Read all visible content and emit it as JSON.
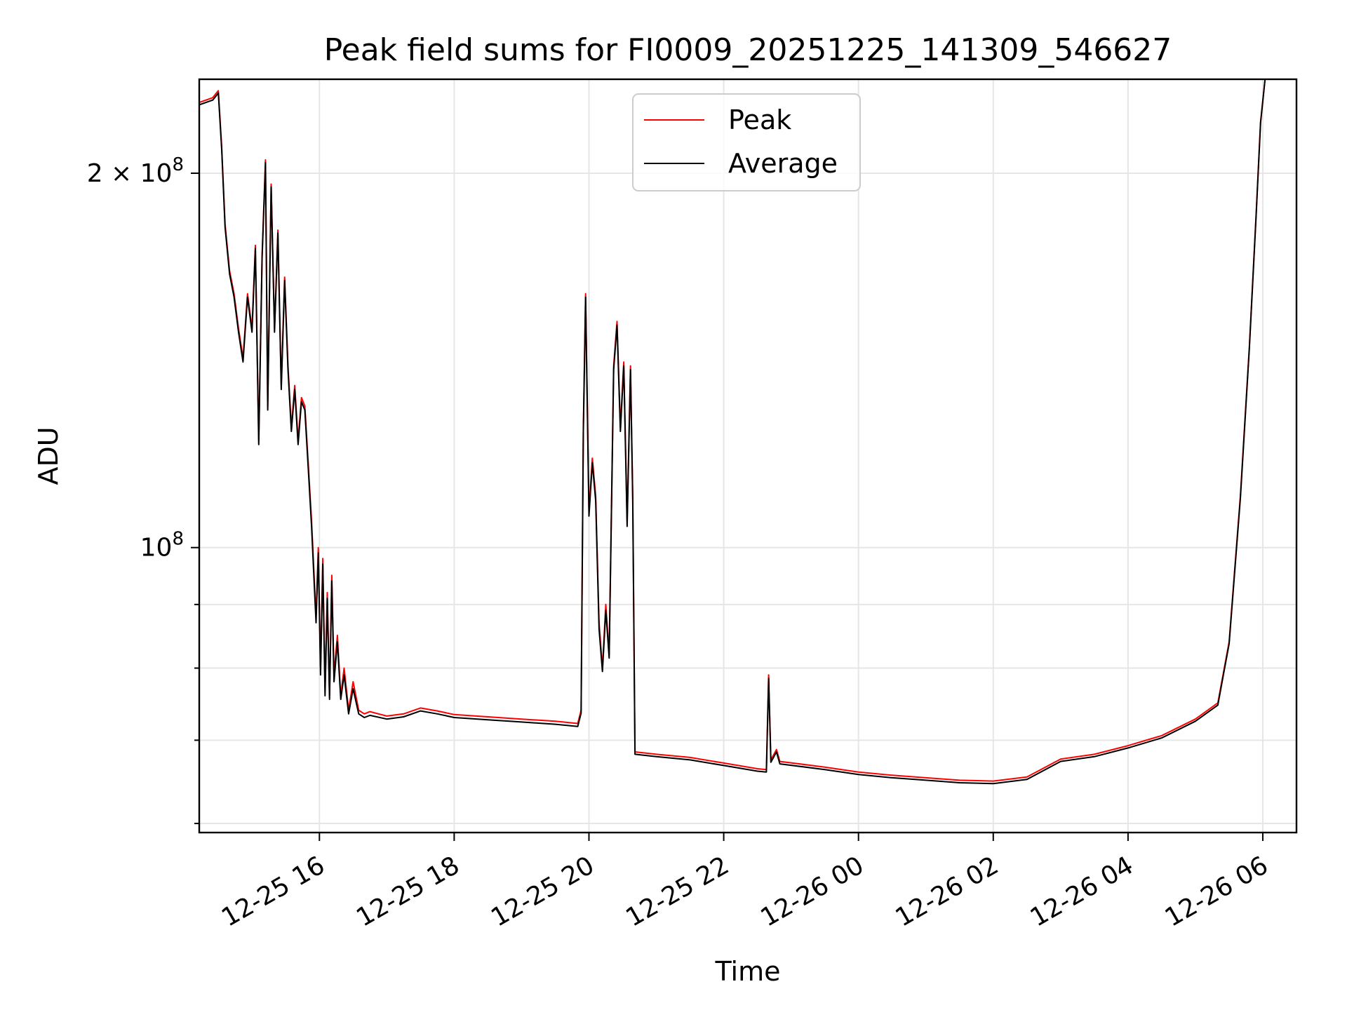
{
  "chart_data": {
    "type": "line",
    "title": "Peak field sums for FI0009_20251225_141309_546627",
    "xlabel": "Time",
    "ylabel": "ADU",
    "yscale": "log",
    "ylim": [
      59000000,
      238000000
    ],
    "xlim": [
      "2025-12-25 14:13",
      "2025-12-26 06:30"
    ],
    "grid": true,
    "legend_position": "upper-center",
    "x_ticks": [
      {
        "t": "2025-12-25 16:00",
        "label": "12-25 16"
      },
      {
        "t": "2025-12-25 18:00",
        "label": "12-25 18"
      },
      {
        "t": "2025-12-25 20:00",
        "label": "12-25 20"
      },
      {
        "t": "2025-12-25 22:00",
        "label": "12-25 22"
      },
      {
        "t": "2025-12-26 00:00",
        "label": "12-26 00"
      },
      {
        "t": "2025-12-26 02:00",
        "label": "12-26 02"
      },
      {
        "t": "2025-12-26 04:00",
        "label": "12-26 04"
      },
      {
        "t": "2025-12-26 06:00",
        "label": "12-26 06"
      }
    ],
    "y_major_ticks": [
      {
        "value": 100000000,
        "base": "10",
        "exp": "8",
        "prefix": ""
      },
      {
        "value": 200000000,
        "base": "10",
        "exp": "8",
        "prefix": "2 × "
      }
    ],
    "y_minor_ticks": [
      60000000,
      70000000,
      80000000,
      90000000
    ],
    "series": [
      {
        "name": "Peak",
        "color": "#ff0000",
        "points": [
          [
            "2025-12-25 14:13",
            228000000
          ],
          [
            "2025-12-25 14:25",
            230000000
          ],
          [
            "2025-12-25 14:30",
            233000000
          ],
          [
            "2025-12-25 14:33",
            210000000
          ],
          [
            "2025-12-25 14:36",
            182000000
          ],
          [
            "2025-12-25 14:40",
            167000000
          ],
          [
            "2025-12-25 14:44",
            160000000
          ],
          [
            "2025-12-25 14:48",
            150000000
          ],
          [
            "2025-12-25 14:52",
            142000000
          ],
          [
            "2025-12-25 14:56",
            160000000
          ],
          [
            "2025-12-25 15:00",
            150000000
          ],
          [
            "2025-12-25 15:03",
            175000000
          ],
          [
            "2025-12-25 15:06",
            122000000
          ],
          [
            "2025-12-25 15:09",
            172000000
          ],
          [
            "2025-12-25 15:12",
            205000000
          ],
          [
            "2025-12-25 15:14",
            130000000
          ],
          [
            "2025-12-25 15:17",
            196000000
          ],
          [
            "2025-12-25 15:20",
            150000000
          ],
          [
            "2025-12-25 15:23",
            180000000
          ],
          [
            "2025-12-25 15:26",
            135000000
          ],
          [
            "2025-12-25 15:29",
            165000000
          ],
          [
            "2025-12-25 15:32",
            140000000
          ],
          [
            "2025-12-25 15:35",
            125000000
          ],
          [
            "2025-12-25 15:38",
            135000000
          ],
          [
            "2025-12-25 15:41",
            122000000
          ],
          [
            "2025-12-25 15:44",
            132000000
          ],
          [
            "2025-12-25 15:47",
            130000000
          ],
          [
            "2025-12-25 15:50",
            117000000
          ],
          [
            "2025-12-25 15:53",
            105000000
          ],
          [
            "2025-12-25 15:55",
            96000000
          ],
          [
            "2025-12-25 15:57",
            88000000
          ],
          [
            "2025-12-25 15:59",
            100000000
          ],
          [
            "2025-12-25 16:01",
            80000000
          ],
          [
            "2025-12-25 16:03",
            98000000
          ],
          [
            "2025-12-25 16:05",
            77000000
          ],
          [
            "2025-12-25 16:07",
            92000000
          ],
          [
            "2025-12-25 16:09",
            76000000
          ],
          [
            "2025-12-25 16:11",
            95000000
          ],
          [
            "2025-12-25 16:13",
            79000000
          ],
          [
            "2025-12-25 16:16",
            85000000
          ],
          [
            "2025-12-25 16:19",
            76000000
          ],
          [
            "2025-12-25 16:22",
            80000000
          ],
          [
            "2025-12-25 16:26",
            74000000
          ],
          [
            "2025-12-25 16:30",
            78000000
          ],
          [
            "2025-12-25 16:35",
            74000000
          ],
          [
            "2025-12-25 16:40",
            73500000
          ],
          [
            "2025-12-25 16:45",
            73800000
          ],
          [
            "2025-12-25 17:00",
            73200000
          ],
          [
            "2025-12-25 17:15",
            73500000
          ],
          [
            "2025-12-25 17:30",
            74300000
          ],
          [
            "2025-12-25 17:45",
            73900000
          ],
          [
            "2025-12-25 18:00",
            73400000
          ],
          [
            "2025-12-25 18:30",
            73100000
          ],
          [
            "2025-12-25 19:00",
            72800000
          ],
          [
            "2025-12-25 19:30",
            72500000
          ],
          [
            "2025-12-25 19:50",
            72200000
          ],
          [
            "2025-12-25 19:53",
            74000000
          ],
          [
            "2025-12-25 19:55",
            125000000
          ],
          [
            "2025-12-25 19:57",
            160000000
          ],
          [
            "2025-12-25 20:00",
            107000000
          ],
          [
            "2025-12-25 20:03",
            118000000
          ],
          [
            "2025-12-25 20:06",
            110000000
          ],
          [
            "2025-12-25 20:09",
            87000000
          ],
          [
            "2025-12-25 20:12",
            80000000
          ],
          [
            "2025-12-25 20:15",
            90000000
          ],
          [
            "2025-12-25 20:18",
            82000000
          ],
          [
            "2025-12-25 20:22",
            140000000
          ],
          [
            "2025-12-25 20:25",
            152000000
          ],
          [
            "2025-12-25 20:28",
            125000000
          ],
          [
            "2025-12-25 20:31",
            141000000
          ],
          [
            "2025-12-25 20:34",
            105000000
          ],
          [
            "2025-12-25 20:37",
            140000000
          ],
          [
            "2025-12-25 20:39",
            110000000
          ],
          [
            "2025-12-25 20:41",
            68500000
          ],
          [
            "2025-12-25 21:00",
            68200000
          ],
          [
            "2025-12-25 21:30",
            67800000
          ],
          [
            "2025-12-25 22:00",
            67100000
          ],
          [
            "2025-12-25 22:30",
            66400000
          ],
          [
            "2025-12-25 22:38",
            66300000
          ],
          [
            "2025-12-25 22:40",
            79000000
          ],
          [
            "2025-12-25 22:42",
            67500000
          ],
          [
            "2025-12-25 22:47",
            68800000
          ],
          [
            "2025-12-25 22:50",
            67300000
          ],
          [
            "2025-12-25 23:30",
            66600000
          ],
          [
            "2025-12-26 00:00",
            66000000
          ],
          [
            "2025-12-26 00:30",
            65600000
          ],
          [
            "2025-12-26 01:00",
            65300000
          ],
          [
            "2025-12-26 01:30",
            65000000
          ],
          [
            "2025-12-26 02:00",
            64900000
          ],
          [
            "2025-12-26 02:30",
            65400000
          ],
          [
            "2025-12-26 03:00",
            67600000
          ],
          [
            "2025-12-26 03:30",
            68200000
          ],
          [
            "2025-12-26 04:00",
            69300000
          ],
          [
            "2025-12-26 04:30",
            70600000
          ],
          [
            "2025-12-26 05:00",
            72800000
          ],
          [
            "2025-12-26 05:20",
            75000000
          ],
          [
            "2025-12-26 05:30",
            84000000
          ],
          [
            "2025-12-26 05:40",
            110000000
          ],
          [
            "2025-12-26 05:48",
            145000000
          ],
          [
            "2025-12-26 05:54",
            185000000
          ],
          [
            "2025-12-26 05:58",
            220000000
          ],
          [
            "2025-12-26 06:02",
            238000000
          ]
        ]
      },
      {
        "name": "Average",
        "color": "#000000",
        "points": [
          [
            "2025-12-25 14:13",
            227000000
          ],
          [
            "2025-12-25 14:25",
            229000000
          ],
          [
            "2025-12-25 14:30",
            232000000
          ],
          [
            "2025-12-25 14:33",
            209000000
          ],
          [
            "2025-12-25 14:36",
            181000000
          ],
          [
            "2025-12-25 14:40",
            166000000
          ],
          [
            "2025-12-25 14:44",
            159000000
          ],
          [
            "2025-12-25 14:48",
            149000000
          ],
          [
            "2025-12-25 14:52",
            141000000
          ],
          [
            "2025-12-25 14:56",
            159000000
          ],
          [
            "2025-12-25 15:00",
            149000000
          ],
          [
            "2025-12-25 15:03",
            174000000
          ],
          [
            "2025-12-25 15:06",
            121000000
          ],
          [
            "2025-12-25 15:09",
            171000000
          ],
          [
            "2025-12-25 15:12",
            204000000
          ],
          [
            "2025-12-25 15:14",
            129000000
          ],
          [
            "2025-12-25 15:17",
            195000000
          ],
          [
            "2025-12-25 15:20",
            149000000
          ],
          [
            "2025-12-25 15:23",
            179000000
          ],
          [
            "2025-12-25 15:26",
            134000000
          ],
          [
            "2025-12-25 15:29",
            164000000
          ],
          [
            "2025-12-25 15:32",
            139000000
          ],
          [
            "2025-12-25 15:35",
            124000000
          ],
          [
            "2025-12-25 15:38",
            134000000
          ],
          [
            "2025-12-25 15:41",
            121000000
          ],
          [
            "2025-12-25 15:44",
            131000000
          ],
          [
            "2025-12-25 15:47",
            129000000
          ],
          [
            "2025-12-25 15:50",
            116000000
          ],
          [
            "2025-12-25 15:53",
            104000000
          ],
          [
            "2025-12-25 15:55",
            95000000
          ],
          [
            "2025-12-25 15:57",
            87000000
          ],
          [
            "2025-12-25 15:59",
            99000000
          ],
          [
            "2025-12-25 16:01",
            79000000
          ],
          [
            "2025-12-25 16:03",
            97000000
          ],
          [
            "2025-12-25 16:05",
            76000000
          ],
          [
            "2025-12-25 16:07",
            91000000
          ],
          [
            "2025-12-25 16:09",
            75500000
          ],
          [
            "2025-12-25 16:11",
            94000000
          ],
          [
            "2025-12-25 16:13",
            78000000
          ],
          [
            "2025-12-25 16:16",
            84000000
          ],
          [
            "2025-12-25 16:19",
            75500000
          ],
          [
            "2025-12-25 16:22",
            79000000
          ],
          [
            "2025-12-25 16:26",
            73500000
          ],
          [
            "2025-12-25 16:30",
            77000000
          ],
          [
            "2025-12-25 16:35",
            73500000
          ],
          [
            "2025-12-25 16:40",
            73000000
          ],
          [
            "2025-12-25 16:45",
            73300000
          ],
          [
            "2025-12-25 17:00",
            72800000
          ],
          [
            "2025-12-25 17:15",
            73100000
          ],
          [
            "2025-12-25 17:30",
            73900000
          ],
          [
            "2025-12-25 17:45",
            73500000
          ],
          [
            "2025-12-25 18:00",
            73000000
          ],
          [
            "2025-12-25 18:30",
            72700000
          ],
          [
            "2025-12-25 19:00",
            72400000
          ],
          [
            "2025-12-25 19:30",
            72100000
          ],
          [
            "2025-12-25 19:50",
            71800000
          ],
          [
            "2025-12-25 19:53",
            73600000
          ],
          [
            "2025-12-25 19:55",
            124000000
          ],
          [
            "2025-12-25 19:57",
            159000000
          ],
          [
            "2025-12-25 20:00",
            106000000
          ],
          [
            "2025-12-25 20:03",
            117000000
          ],
          [
            "2025-12-25 20:06",
            109000000
          ],
          [
            "2025-12-25 20:09",
            86000000
          ],
          [
            "2025-12-25 20:12",
            79500000
          ],
          [
            "2025-12-25 20:15",
            89000000
          ],
          [
            "2025-12-25 20:18",
            81500000
          ],
          [
            "2025-12-25 20:22",
            139000000
          ],
          [
            "2025-12-25 20:25",
            151000000
          ],
          [
            "2025-12-25 20:28",
            124000000
          ],
          [
            "2025-12-25 20:31",
            140000000
          ],
          [
            "2025-12-25 20:34",
            104000000
          ],
          [
            "2025-12-25 20:37",
            139000000
          ],
          [
            "2025-12-25 20:39",
            109000000
          ],
          [
            "2025-12-25 20:41",
            68200000
          ],
          [
            "2025-12-25 21:00",
            67900000
          ],
          [
            "2025-12-25 21:30",
            67500000
          ],
          [
            "2025-12-25 22:00",
            66800000
          ],
          [
            "2025-12-25 22:30",
            66100000
          ],
          [
            "2025-12-25 22:38",
            66000000
          ],
          [
            "2025-12-25 22:40",
            78500000
          ],
          [
            "2025-12-25 22:42",
            67200000
          ],
          [
            "2025-12-25 22:47",
            68500000
          ],
          [
            "2025-12-25 22:50",
            67000000
          ],
          [
            "2025-12-25 23:30",
            66300000
          ],
          [
            "2025-12-26 00:00",
            65700000
          ],
          [
            "2025-12-26 00:30",
            65300000
          ],
          [
            "2025-12-26 01:00",
            65000000
          ],
          [
            "2025-12-26 01:30",
            64700000
          ],
          [
            "2025-12-26 02:00",
            64600000
          ],
          [
            "2025-12-26 02:30",
            65100000
          ],
          [
            "2025-12-26 03:00",
            67300000
          ],
          [
            "2025-12-26 03:30",
            67900000
          ],
          [
            "2025-12-26 04:00",
            69000000
          ],
          [
            "2025-12-26 04:30",
            70300000
          ],
          [
            "2025-12-26 05:00",
            72500000
          ],
          [
            "2025-12-26 05:20",
            74700000
          ],
          [
            "2025-12-26 05:30",
            83700000
          ],
          [
            "2025-12-26 05:40",
            109500000
          ],
          [
            "2025-12-26 05:48",
            144500000
          ],
          [
            "2025-12-26 05:54",
            184500000
          ],
          [
            "2025-12-26 05:58",
            219500000
          ],
          [
            "2025-12-26 06:02",
            238000000
          ]
        ]
      }
    ]
  }
}
